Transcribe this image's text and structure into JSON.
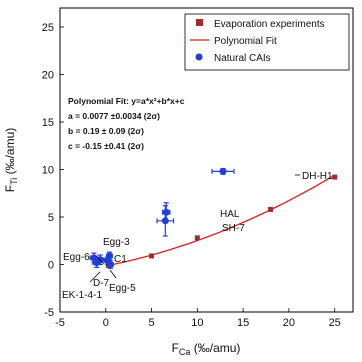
{
  "chart_data": {
    "type": "scatter",
    "xlabel_main": "F",
    "xlabel_sub": "Ca",
    "xlabel_unit": " (‰/amu)",
    "ylabel_main": "F",
    "ylabel_sub": "Ti",
    "ylabel_unit": " (‰/amu)",
    "xlim": [
      -5,
      27
    ],
    "ylim": [
      -5,
      27
    ],
    "xticks": [
      -5,
      0,
      5,
      10,
      15,
      20,
      25
    ],
    "yticks": [
      -5,
      0,
      5,
      10,
      15,
      20,
      25
    ],
    "legend_position": "top-right",
    "legend": [
      {
        "label": "Evaporation experiments",
        "marker": "square",
        "color": "#a52a2a"
      },
      {
        "label": "Polynomial Fit",
        "marker": "line",
        "color": "#e41a1c"
      },
      {
        "label": "Natural CAIs",
        "marker": "circle",
        "color": "#1f3fd6"
      }
    ],
    "fit_annotation": [
      "Polynomial Fit: y=a*x²+b*x+c",
      "a = 0.0077 ±0.0034 (2σ)",
      "b = 0.19 ± 0.09 (2σ)",
      "c = -0.15 ±0.41 (2σ)"
    ],
    "series": [
      {
        "name": "Evaporation experiments",
        "marker": "square",
        "color": "#a52a2a",
        "points": [
          {
            "x": 0.3,
            "y": -0.1
          },
          {
            "x": 5.0,
            "y": 0.9
          },
          {
            "x": 10.0,
            "y": 2.8
          },
          {
            "x": 18.0,
            "y": 5.8
          },
          {
            "x": 25.0,
            "y": 9.2
          }
        ]
      },
      {
        "name": "Polynomial Fit",
        "type": "line",
        "color": "#e41a1c",
        "coefficients": {
          "a": 0.0077,
          "b": 0.19,
          "c": -0.15
        },
        "x_range": [
          0,
          25
        ]
      },
      {
        "name": "Natural CAIs",
        "marker": "circle",
        "color": "#1f3fd6",
        "points": [
          {
            "label": "DH-H1",
            "x": 12.8,
            "y": 9.8,
            "xerr": 1.2,
            "yerr": 0.3
          },
          {
            "label": "HAL",
            "x": 6.6,
            "y": 5.5,
            "xerr": 0.4,
            "yerr": 1.0
          },
          {
            "label": "SH-7",
            "x": 6.5,
            "y": 4.6,
            "xerr": 0.9,
            "yerr": 1.6
          },
          {
            "label": "Egg-3",
            "x": 0.4,
            "y": 0.9,
            "xerr": 0.3,
            "yerr": 0.4
          },
          {
            "label": "C1",
            "x": 0.2,
            "y": 0.4,
            "xerr": 0.3,
            "yerr": 0.4
          },
          {
            "label": "Egg-6",
            "x": -1.3,
            "y": 0.7,
            "xerr": 0.4,
            "yerr": 0.5
          },
          {
            "label": "D-7",
            "x": -0.6,
            "y": 0.5,
            "xerr": 0.4,
            "yerr": 0.5
          },
          {
            "label": "EK-1-4-1",
            "x": -1.0,
            "y": 0.2,
            "xerr": 0.4,
            "yerr": 0.5
          },
          {
            "label": "Egg-5",
            "x": 0.5,
            "y": 0.0,
            "xerr": 0.3,
            "yerr": 0.4
          }
        ]
      }
    ]
  }
}
